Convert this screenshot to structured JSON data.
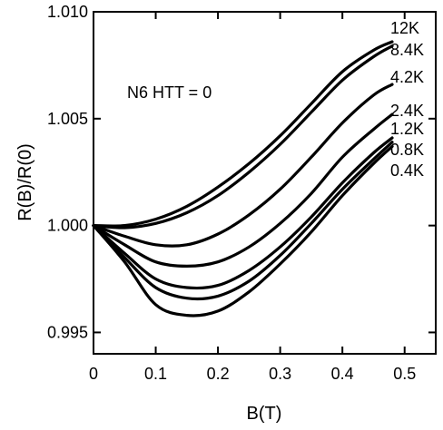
{
  "chart_data": {
    "type": "line",
    "xlabel": "B(T)",
    "ylabel": "R(B)/R(0)",
    "annotation": "N6 HTT = 0",
    "xlim": [
      0,
      0.55
    ],
    "ylim": [
      0.994,
      1.01
    ],
    "x_ticks": [
      0,
      0.1,
      0.2,
      0.3,
      0.4,
      0.5
    ],
    "x_tick_labels": [
      "0",
      "0.1",
      "0.2",
      "0.3",
      "0.4",
      "0.5"
    ],
    "y_ticks": [
      0.995,
      1.0,
      1.005,
      1.01
    ],
    "y_tick_labels": [
      "0.995",
      "1.000",
      "1.005",
      "1.010"
    ],
    "grid": false,
    "legend": "labels at right end of each curve",
    "series": [
      {
        "name": "12K",
        "x": [
          0,
          0.05,
          0.1,
          0.15,
          0.2,
          0.25,
          0.3,
          0.35,
          0.4,
          0.45,
          0.48
        ],
        "y": [
          1.0,
          1.0,
          1.0003,
          1.0009,
          1.0018,
          1.0029,
          1.0042,
          1.0057,
          1.0072,
          1.0082,
          1.0086
        ]
      },
      {
        "name": "8.4K",
        "x": [
          0,
          0.05,
          0.1,
          0.15,
          0.2,
          0.25,
          0.3,
          0.35,
          0.4,
          0.45,
          0.48
        ],
        "y": [
          1.0,
          0.9999,
          1.0001,
          1.0006,
          1.0014,
          1.0025,
          1.0038,
          1.0053,
          1.0068,
          1.0079,
          1.0084
        ]
      },
      {
        "name": "4.2K",
        "x": [
          0,
          0.05,
          0.1,
          0.15,
          0.2,
          0.25,
          0.3,
          0.35,
          0.4,
          0.45,
          0.48
        ],
        "y": [
          1.0,
          0.9995,
          0.9991,
          0.9991,
          0.9996,
          1.0005,
          1.0017,
          1.0032,
          1.0048,
          1.0061,
          1.0066
        ]
      },
      {
        "name": "2.4K",
        "x": [
          0,
          0.05,
          0.1,
          0.15,
          0.2,
          0.25,
          0.3,
          0.35,
          0.4,
          0.45,
          0.48
        ],
        "y": [
          1.0,
          0.9991,
          0.9983,
          0.9981,
          0.9983,
          0.999,
          1.0001,
          1.0015,
          1.0032,
          1.0045,
          1.0052
        ]
      },
      {
        "name": "1.2K",
        "x": [
          0,
          0.05,
          0.1,
          0.15,
          0.2,
          0.25,
          0.3,
          0.35,
          0.4,
          0.45,
          0.48
        ],
        "y": [
          1.0,
          0.9987,
          0.9975,
          0.9971,
          0.9972,
          0.9979,
          0.999,
          1.0004,
          1.002,
          1.0034,
          1.0041
        ]
      },
      {
        "name": "0.8K",
        "x": [
          0,
          0.05,
          0.1,
          0.15,
          0.2,
          0.25,
          0.3,
          0.35,
          0.4,
          0.45,
          0.48
        ],
        "y": [
          1.0,
          0.9985,
          0.9971,
          0.9966,
          0.9967,
          0.9974,
          0.9986,
          1.0001,
          1.0017,
          1.0031,
          1.0039
        ]
      },
      {
        "name": "0.4K",
        "x": [
          0,
          0.05,
          0.1,
          0.15,
          0.2,
          0.25,
          0.3,
          0.35,
          0.4,
          0.45,
          0.48
        ],
        "y": [
          1.0,
          0.9983,
          0.9963,
          0.9958,
          0.996,
          0.9969,
          0.9982,
          0.9997,
          1.0014,
          1.0029,
          1.0037
        ]
      }
    ],
    "curve_labels": [
      "12K",
      "8.4K",
      "4.2K",
      "2.4K",
      "1.2K",
      "0.8K",
      "0.4K"
    ]
  }
}
